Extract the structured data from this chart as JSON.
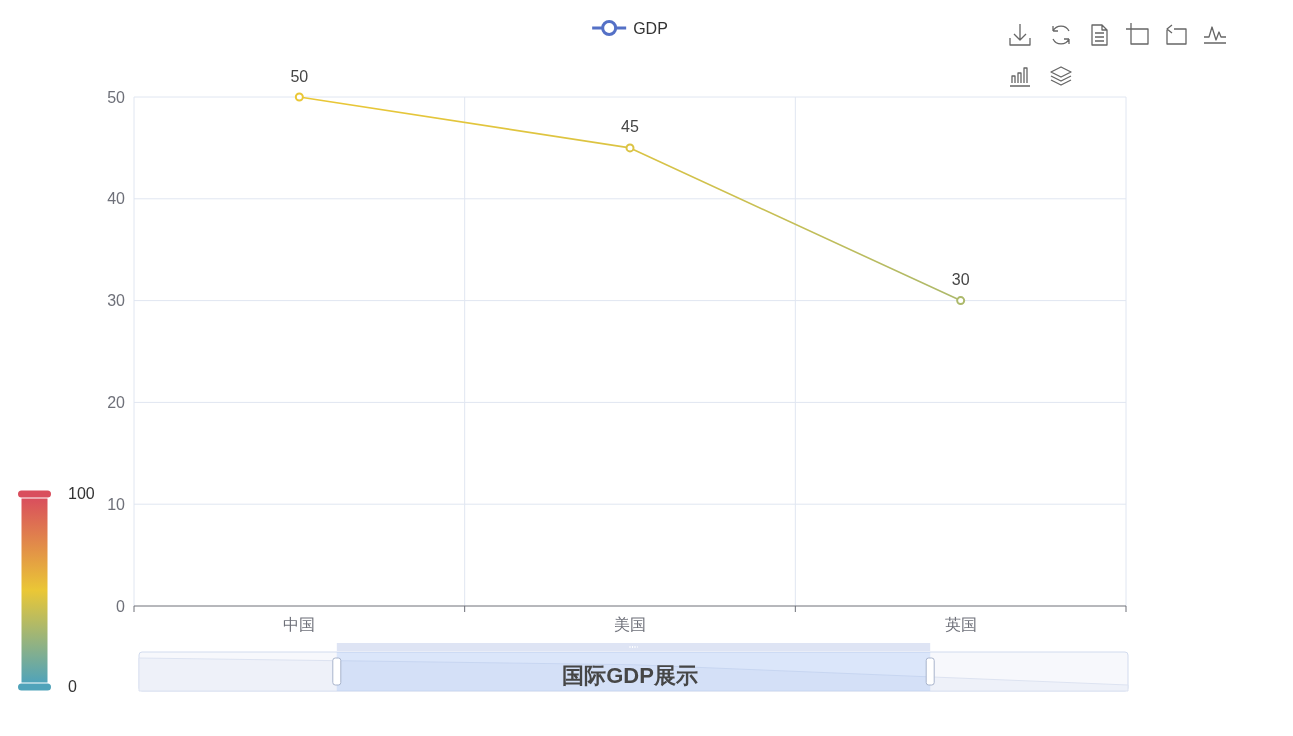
{
  "chart_data": {
    "type": "line",
    "title": "国际GDP展示",
    "categories": [
      "中国",
      "美国",
      "英国"
    ],
    "series": [
      {
        "name": "GDP",
        "values": [
          50,
          45,
          30
        ]
      }
    ],
    "ylim": [
      0,
      50
    ],
    "yticks": [
      0,
      10,
      20,
      30,
      40,
      50
    ],
    "clim": [
      0,
      100
    ],
    "cticks": [
      0,
      100
    ],
    "grid": true,
    "legend": "top",
    "marker": "circle",
    "line_style": "solid",
    "data_labels": true
  }
}
